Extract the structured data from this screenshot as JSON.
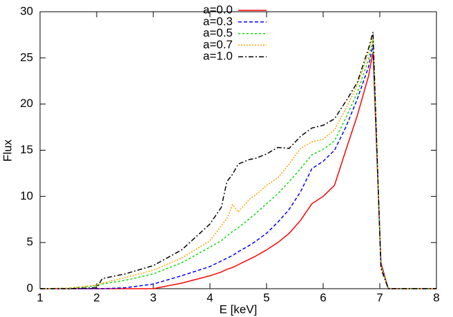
{
  "chart_data": {
    "type": "line",
    "xlabel": "E [keV]",
    "ylabel": "Flux",
    "x": [
      1,
      1.5,
      2,
      2.1,
      2.5,
      3,
      3.5,
      4,
      4.2,
      4.3,
      4.4,
      4.5,
      4.7,
      4.8,
      5,
      5.2,
      5.4,
      5.6,
      5.8,
      6,
      6.2,
      6.4,
      6.6,
      6.8,
      6.88,
      7.02,
      7.15,
      8
    ],
    "series": [
      {
        "name": "a=0.0",
        "color": "#ff0000",
        "values": [
          0,
          0,
          0,
          0,
          0,
          0,
          0.6,
          1.4,
          1.8,
          2.1,
          2.3,
          2.6,
          3.2,
          3.5,
          4.2,
          5.0,
          6.0,
          7.4,
          9.2,
          10.0,
          11.2,
          15.0,
          18.7,
          23.0,
          25.6,
          2.8,
          0,
          0
        ]
      },
      {
        "name": "a=0.3",
        "color": "#0000ff",
        "values": [
          0,
          0,
          0,
          0,
          0.1,
          0.5,
          1.4,
          2.4,
          3.0,
          3.3,
          3.6,
          4.0,
          4.7,
          5.1,
          6.0,
          7.2,
          8.6,
          10.5,
          13.0,
          13.8,
          15.0,
          17.5,
          20.5,
          24.0,
          26.5,
          2.6,
          0,
          0
        ]
      },
      {
        "name": "a=0.5",
        "color": "#00dd00",
        "values": [
          0,
          0.05,
          0.3,
          0.5,
          0.9,
          1.6,
          2.8,
          4.5,
          5.2,
          5.7,
          6.2,
          6.6,
          7.6,
          8.1,
          9.2,
          10.3,
          11.6,
          13.0,
          14.5,
          15.1,
          16.0,
          18.5,
          21.2,
          24.8,
          27.0,
          2.5,
          0,
          0
        ]
      },
      {
        "name": "a=0.7",
        "color": "#ffa000",
        "values": [
          0,
          0.05,
          0.4,
          0.6,
          1.2,
          2.0,
          3.3,
          5.2,
          6.8,
          7.6,
          9.1,
          8.3,
          9.7,
          10.1,
          11.2,
          12.0,
          13.5,
          15.2,
          15.9,
          16.2,
          17.2,
          19.5,
          22.0,
          25.5,
          27.5,
          2.5,
          0,
          0
        ]
      },
      {
        "name": "a=1.0",
        "color": "#000000",
        "values": [
          0,
          0,
          0.1,
          1.1,
          1.6,
          2.5,
          4.2,
          7.0,
          8.8,
          11.6,
          12.4,
          13.5,
          14.0,
          14.1,
          14.6,
          15.3,
          15.2,
          16.5,
          17.4,
          17.7,
          18.4,
          20.3,
          22.3,
          26.0,
          27.8,
          2.2,
          0,
          0
        ]
      }
    ],
    "xlim": [
      1,
      8
    ],
    "xticks": [
      1,
      2,
      3,
      4,
      5,
      6,
      7,
      8
    ],
    "ylim": [
      0,
      30
    ],
    "yticks": [
      0,
      5,
      10,
      15,
      20,
      25,
      30
    ]
  }
}
